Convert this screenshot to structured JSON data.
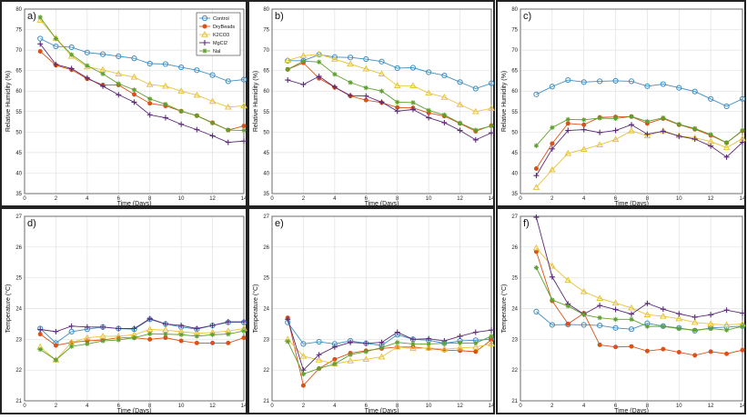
{
  "legend": {
    "placement": "top-right",
    "entries": [
      "Control",
      "DryBeads",
      "K2CO3",
      "MgCl2",
      "NaI"
    ]
  },
  "series_style": [
    {
      "name": "Control",
      "color": "#3f8fc4",
      "marker": "circle"
    },
    {
      "name": "DryBeads",
      "color": "#d95319",
      "marker": "star"
    },
    {
      "name": "K2CO3",
      "color": "#e8c33a",
      "marker": "triangle"
    },
    {
      "name": "MgCl2",
      "color": "#5b2a77",
      "marker": "plus"
    },
    {
      "name": "NaI",
      "color": "#5fa02e",
      "marker": "asterisk"
    }
  ],
  "chart_data": [
    {
      "type": "line",
      "panel_label": "a)",
      "xlabel": "Time (Days)",
      "ylabel": "Relative Humidity (%)",
      "xlim": [
        0,
        14
      ],
      "ylim": [
        35,
        80
      ],
      "xticks": [
        0,
        2,
        4,
        6,
        8,
        10,
        12,
        14
      ],
      "yticks": [
        35,
        40,
        45,
        50,
        55,
        60,
        65,
        70,
        75,
        80
      ],
      "grid": true,
      "legend": true,
      "x": [
        1,
        2,
        3,
        4,
        5,
        6,
        7,
        8,
        9,
        10,
        11,
        12,
        13,
        14
      ],
      "series": [
        {
          "name": "Control",
          "values": [
            72.8,
            70.9,
            70.7,
            69.4,
            69.0,
            68.5,
            68.0,
            66.7,
            66.6,
            65.8,
            65.1,
            63.9,
            62.4,
            62.8
          ]
        },
        {
          "name": "DryBeads",
          "values": [
            69.7,
            66.3,
            65.2,
            63.0,
            61.5,
            61.5,
            59.2,
            57.0,
            56.4,
            55.1,
            54.0,
            52.3,
            50.5,
            51.5
          ]
        },
        {
          "name": "K2CO3",
          "values": [
            77.3,
            72.9,
            68.5,
            65.9,
            65.2,
            64.2,
            63.4,
            61.6,
            61.2,
            60.0,
            59.0,
            57.5,
            56.1,
            56.4
          ]
        },
        {
          "name": "MgCl2",
          "values": [
            71.5,
            66.5,
            65.5,
            63.2,
            61.2,
            59.1,
            57.3,
            54.2,
            53.5,
            51.9,
            50.6,
            49.1,
            47.5,
            47.8
          ]
        },
        {
          "name": "NaI",
          "values": [
            78.0,
            72.8,
            68.9,
            66.2,
            64.2,
            61.8,
            60.3,
            58.1,
            56.8,
            55.1,
            54.0,
            52.2,
            50.5,
            50.4
          ]
        }
      ]
    },
    {
      "type": "line",
      "panel_label": "b)",
      "xlabel": "Time (Days)",
      "ylabel": "Relative Humidity (%)",
      "xlim": [
        0,
        14
      ],
      "ylim": [
        35,
        80
      ],
      "xticks": [
        0,
        2,
        4,
        6,
        8,
        10,
        12,
        14
      ],
      "yticks": [
        35,
        40,
        45,
        50,
        55,
        60,
        65,
        70,
        75,
        80
      ],
      "grid": true,
      "legend": false,
      "x": [
        1,
        2,
        3,
        4,
        5,
        6,
        7,
        8,
        9,
        10,
        11,
        12,
        13,
        14
      ],
      "series": [
        {
          "name": "Control",
          "values": [
            67.4,
            67.4,
            68.9,
            68.3,
            68.2,
            67.8,
            67.2,
            65.6,
            65.7,
            64.6,
            63.8,
            62.2,
            60.6,
            61.9
          ]
        },
        {
          "name": "DryBeads",
          "values": [
            65.3,
            66.9,
            63.1,
            60.9,
            58.8,
            57.8,
            57.2,
            56.0,
            55.9,
            54.7,
            53.9,
            52.1,
            50.2,
            51.6
          ]
        },
        {
          "name": "K2CO3",
          "values": [
            67.5,
            68.6,
            69.0,
            67.8,
            66.6,
            65.4,
            64.2,
            61.3,
            61.3,
            59.5,
            58.5,
            56.7,
            55.0,
            55.8
          ]
        },
        {
          "name": "MgCl2",
          "values": [
            62.7,
            61.6,
            63.6,
            61.0,
            58.9,
            58.8,
            57.3,
            55.1,
            55.5,
            53.5,
            52.3,
            50.4,
            48.1,
            49.8
          ]
        },
        {
          "name": "NaI",
          "values": [
            65.3,
            67.3,
            67.1,
            64.1,
            62.1,
            60.8,
            60.0,
            57.3,
            57.2,
            55.3,
            54.2,
            52.2,
            50.5,
            51.5
          ]
        }
      ]
    },
    {
      "type": "line",
      "panel_label": "c)",
      "xlabel": "Time (Days)",
      "ylabel": "Relative Humidity (%)",
      "xlim": [
        0,
        14
      ],
      "ylim": [
        35,
        80
      ],
      "xticks": [
        0,
        2,
        4,
        6,
        8,
        10,
        12,
        14
      ],
      "yticks": [
        35,
        40,
        45,
        50,
        55,
        60,
        65,
        70,
        75,
        80
      ],
      "grid": true,
      "legend": false,
      "x": [
        1,
        2,
        3,
        4,
        5,
        6,
        7,
        8,
        9,
        10,
        11,
        12,
        13,
        14
      ],
      "series": [
        {
          "name": "Control",
          "values": [
            59.2,
            61.1,
            62.7,
            62.2,
            62.4,
            62.5,
            62.4,
            61.2,
            61.7,
            60.8,
            59.9,
            58.1,
            56.3,
            58.1
          ]
        },
        {
          "name": "DryBeads",
          "values": [
            41.1,
            47.2,
            52.1,
            51.8,
            53.6,
            53.7,
            53.8,
            52.1,
            53.3,
            51.8,
            50.7,
            49.2,
            47.4,
            50.3
          ]
        },
        {
          "name": "K2CO3",
          "values": [
            36.5,
            40.8,
            44.8,
            45.8,
            46.9,
            48.2,
            50.3,
            49.1,
            50.3,
            49.1,
            48.6,
            47.7,
            46.2,
            48.4
          ]
        },
        {
          "name": "MgCl2",
          "values": [
            39.4,
            45.9,
            50.4,
            50.6,
            49.9,
            50.4,
            51.8,
            49.5,
            50.2,
            49.0,
            48.3,
            46.6,
            43.9,
            47.5
          ]
        },
        {
          "name": "NaI",
          "values": [
            46.7,
            51.1,
            53.1,
            53.0,
            53.4,
            53.3,
            53.8,
            52.6,
            53.5,
            51.9,
            50.9,
            49.4,
            47.4,
            50.4
          ]
        }
      ]
    },
    {
      "type": "line",
      "panel_label": "d)",
      "xlabel": "Time (Days)",
      "ylabel": "Temperature (°C)",
      "xlim": [
        0,
        14
      ],
      "ylim": [
        21,
        27
      ],
      "xticks": [
        0,
        2,
        4,
        6,
        8,
        10,
        12,
        14
      ],
      "yticks": [
        21,
        22,
        23,
        24,
        25,
        26,
        27
      ],
      "grid": true,
      "legend": false,
      "x": [
        1,
        2,
        3,
        4,
        5,
        6,
        7,
        8,
        9,
        10,
        11,
        12,
        13,
        14
      ],
      "series": [
        {
          "name": "Control",
          "values": [
            23.35,
            22.88,
            23.25,
            23.33,
            23.4,
            23.35,
            23.33,
            23.65,
            23.5,
            23.4,
            23.33,
            23.45,
            23.55,
            23.55
          ]
        },
        {
          "name": "DryBeads",
          "values": [
            23.17,
            22.8,
            22.9,
            22.95,
            22.98,
            23.05,
            23.05,
            23.0,
            23.05,
            22.95,
            22.88,
            22.88,
            22.88,
            23.05
          ]
        },
        {
          "name": "K2CO3",
          "values": [
            22.75,
            22.33,
            22.9,
            23.05,
            23.1,
            23.1,
            23.15,
            23.32,
            23.3,
            23.25,
            23.2,
            23.22,
            23.27,
            23.35
          ]
        },
        {
          "name": "MgCl2",
          "values": [
            23.32,
            23.25,
            23.43,
            23.4,
            23.4,
            23.35,
            23.35,
            23.67,
            23.5,
            23.45,
            23.35,
            23.45,
            23.57,
            23.57
          ]
        },
        {
          "name": "NaI",
          "values": [
            22.67,
            22.33,
            22.77,
            22.85,
            22.95,
            22.98,
            23.05,
            23.18,
            23.17,
            23.15,
            23.1,
            23.15,
            23.17,
            23.27
          ]
        }
      ]
    },
    {
      "type": "line",
      "panel_label": "e)",
      "xlabel": "Time (Days)",
      "ylabel": "Temperature (°C)",
      "xlim": [
        0,
        14
      ],
      "ylim": [
        21,
        27
      ],
      "xticks": [
        0,
        2,
        4,
        6,
        8,
        10,
        12,
        14
      ],
      "yticks": [
        21,
        22,
        23,
        24,
        25,
        26,
        27
      ],
      "grid": true,
      "legend": false,
      "x": [
        1,
        2,
        3,
        4,
        5,
        6,
        7,
        8,
        9,
        10,
        11,
        12,
        13,
        14
      ],
      "series": [
        {
          "name": "Control",
          "values": [
            23.55,
            22.85,
            22.92,
            22.85,
            22.95,
            22.87,
            22.8,
            23.15,
            23.0,
            22.97,
            22.87,
            22.95,
            22.97,
            23.0
          ]
        },
        {
          "name": "DryBeads",
          "values": [
            23.7,
            21.5,
            22.05,
            22.35,
            22.55,
            22.63,
            22.7,
            22.75,
            22.75,
            22.7,
            22.65,
            22.63,
            22.6,
            22.98
          ]
        },
        {
          "name": "K2CO3",
          "values": [
            23.0,
            22.45,
            22.33,
            22.2,
            22.3,
            22.35,
            22.43,
            22.75,
            22.7,
            22.72,
            22.68,
            22.72,
            22.75,
            22.85
          ]
        },
        {
          "name": "MgCl2",
          "values": [
            23.65,
            22.0,
            22.5,
            22.75,
            22.9,
            22.87,
            22.9,
            23.23,
            23.0,
            23.02,
            22.95,
            23.1,
            23.23,
            23.3
          ]
        },
        {
          "name": "NaI",
          "values": [
            22.93,
            21.87,
            22.05,
            22.2,
            22.5,
            22.6,
            22.73,
            22.9,
            22.85,
            22.85,
            22.87,
            22.88,
            22.88,
            23.1
          ]
        }
      ]
    },
    {
      "type": "line",
      "panel_label": "f)",
      "xlabel": "Time (Days)",
      "ylabel": "Temperature (°C)",
      "xlim": [
        0,
        14
      ],
      "ylim": [
        21,
        27
      ],
      "xticks": [
        0,
        2,
        4,
        6,
        8,
        10,
        12,
        14
      ],
      "yticks": [
        21,
        22,
        23,
        24,
        25,
        26,
        27
      ],
      "grid": true,
      "legend": false,
      "x": [
        1,
        2,
        3,
        4,
        5,
        6,
        7,
        8,
        9,
        10,
        11,
        12,
        13,
        14
      ],
      "series": [
        {
          "name": "Control",
          "values": [
            23.9,
            23.47,
            23.48,
            23.47,
            23.45,
            23.37,
            23.33,
            23.52,
            23.43,
            23.37,
            23.28,
            23.37,
            23.4,
            23.43
          ]
        },
        {
          "name": "DryBeads",
          "values": [
            25.85,
            24.25,
            23.5,
            23.85,
            22.82,
            22.75,
            22.77,
            22.62,
            22.68,
            22.58,
            22.48,
            22.6,
            22.53,
            22.65
          ]
        },
        {
          "name": "K2CO3",
          "values": [
            25.97,
            25.38,
            24.92,
            24.55,
            24.33,
            24.18,
            24.02,
            23.8,
            23.75,
            23.67,
            23.55,
            23.5,
            23.47,
            23.5
          ]
        },
        {
          "name": "MgCl2",
          "values": [
            26.97,
            25.03,
            24.15,
            23.82,
            24.1,
            23.97,
            23.82,
            24.17,
            23.98,
            23.83,
            23.72,
            23.8,
            23.95,
            23.85
          ]
        },
        {
          "name": "NaI",
          "values": [
            25.33,
            24.28,
            24.08,
            23.8,
            23.7,
            23.65,
            23.65,
            23.42,
            23.42,
            23.35,
            23.3,
            23.35,
            23.3,
            23.42
          ]
        }
      ]
    }
  ]
}
